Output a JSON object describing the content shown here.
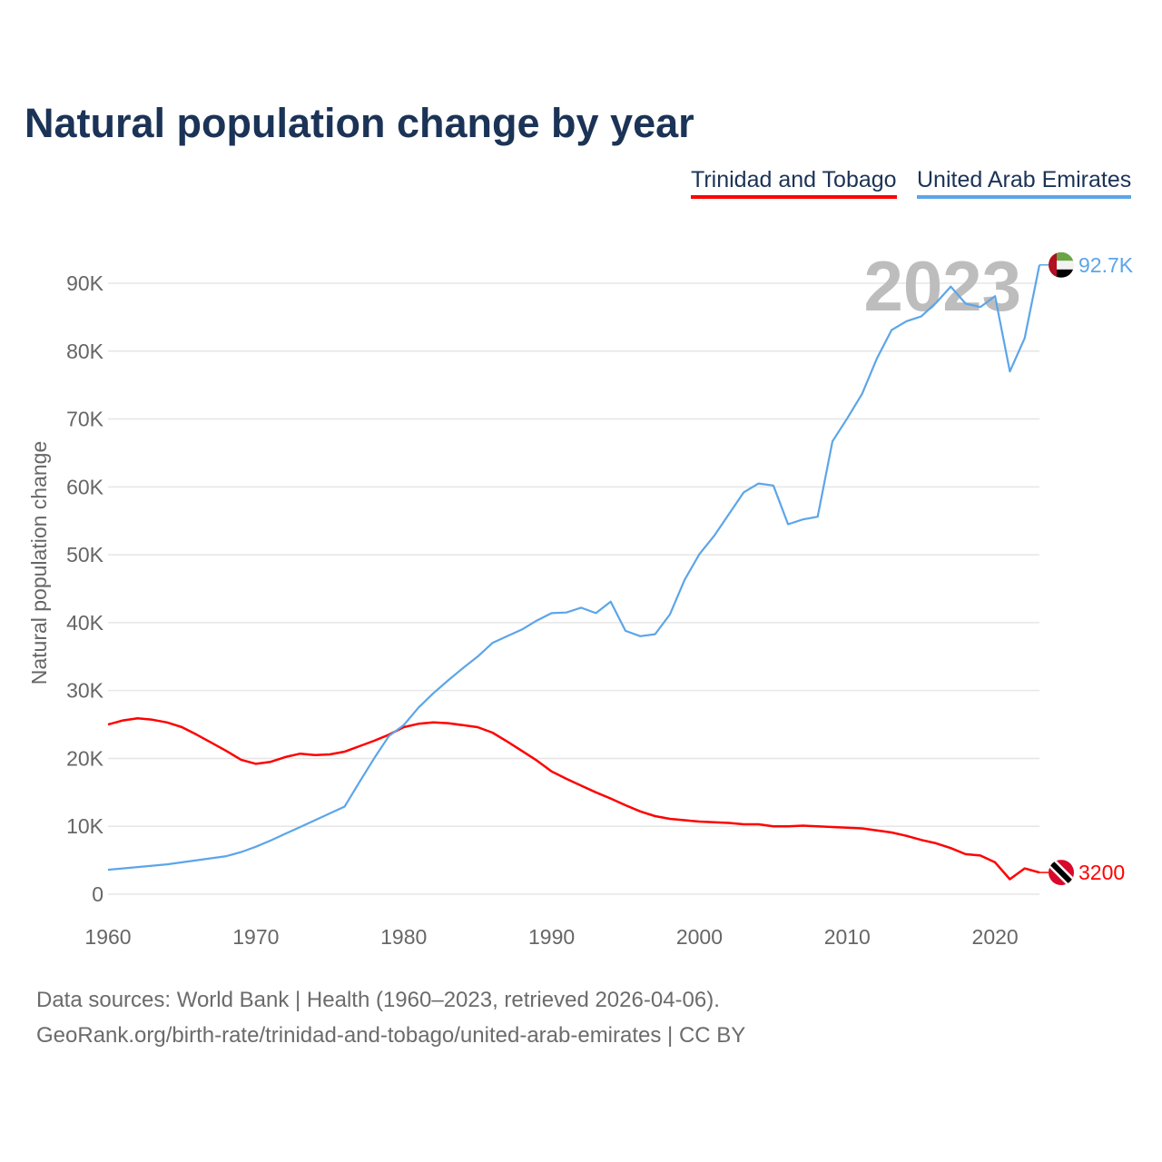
{
  "chart_data": {
    "type": "line",
    "title": "Natural population change by year",
    "xlabel": "",
    "ylabel": "Natural population change",
    "xlim": [
      1960,
      2023
    ],
    "ylim": [
      0,
      90000
    ],
    "x_ticks": [
      1960,
      1970,
      1980,
      1990,
      2000,
      2010,
      2020
    ],
    "y_ticks": [
      0,
      10000,
      20000,
      30000,
      40000,
      50000,
      60000,
      70000,
      80000,
      90000
    ],
    "y_tick_labels": [
      "0",
      "10K",
      "20K",
      "30K",
      "40K",
      "50K",
      "60K",
      "70K",
      "80K",
      "90K"
    ],
    "grid": true,
    "legend_position": "top-right",
    "year_watermark": "2023",
    "x": [
      1960,
      1961,
      1962,
      1963,
      1964,
      1965,
      1966,
      1967,
      1968,
      1969,
      1970,
      1971,
      1972,
      1973,
      1974,
      1975,
      1976,
      1977,
      1978,
      1979,
      1980,
      1981,
      1982,
      1983,
      1984,
      1985,
      1986,
      1987,
      1988,
      1989,
      1990,
      1991,
      1992,
      1993,
      1994,
      1995,
      1996,
      1997,
      1998,
      1999,
      2000,
      2001,
      2002,
      2003,
      2004,
      2005,
      2006,
      2007,
      2008,
      2009,
      2010,
      2011,
      2012,
      2013,
      2014,
      2015,
      2016,
      2017,
      2018,
      2019,
      2020,
      2021,
      2022,
      2023
    ],
    "series": [
      {
        "name": "Trinidad and Tobago",
        "color": "#ff0000",
        "end_label": "3200",
        "flag": "trinidad-and-tobago",
        "values": [
          25000,
          25600,
          25900,
          25700,
          25300,
          24600,
          23500,
          22300,
          21100,
          19800,
          19200,
          19500,
          20200,
          20700,
          20500,
          20600,
          21000,
          21800,
          22600,
          23500,
          24600,
          25100,
          25300,
          25200,
          24900,
          24600,
          23800,
          22500,
          21100,
          19700,
          18100,
          17000,
          16000,
          15000,
          14100,
          13100,
          12200,
          11500,
          11100,
          10900,
          10700,
          10600,
          10500,
          10300,
          10300,
          10000,
          10000,
          10100,
          10000,
          9900,
          9800,
          9700,
          9400,
          9100,
          8600,
          8000,
          7500,
          6800,
          5900,
          5700,
          4700,
          2200,
          3800,
          3200
        ]
      },
      {
        "name": "United Arab Emirates",
        "color": "#5ca5e9",
        "end_label": "92.7K",
        "flag": "united-arab-emirates",
        "values": [
          3600,
          3800,
          4000,
          4200,
          4400,
          4700,
          5000,
          5300,
          5600,
          6200,
          7000,
          7900,
          8900,
          9900,
          10900,
          11900,
          12900,
          16500,
          20000,
          23300,
          24900,
          27500,
          29600,
          31500,
          33300,
          35000,
          37000,
          38000,
          39000,
          40300,
          41400,
          41500,
          42200,
          41400,
          43100,
          38800,
          38000,
          38300,
          41200,
          46300,
          50100,
          52800,
          56000,
          59200,
          60500,
          60200,
          54500,
          55200,
          55600,
          66700,
          70100,
          73700,
          78900,
          83100,
          84400,
          85100,
          87100,
          89500,
          87000,
          86500,
          88100,
          77000,
          81900,
          92700
        ]
      }
    ]
  },
  "footer": {
    "line1": "Data sources: World Bank | Health (1960–2023, retrieved 2026-04-06).",
    "line2": "GeoRank.org/birth-rate/trinidad-and-tobago/united-arab-emirates | CC BY"
  }
}
